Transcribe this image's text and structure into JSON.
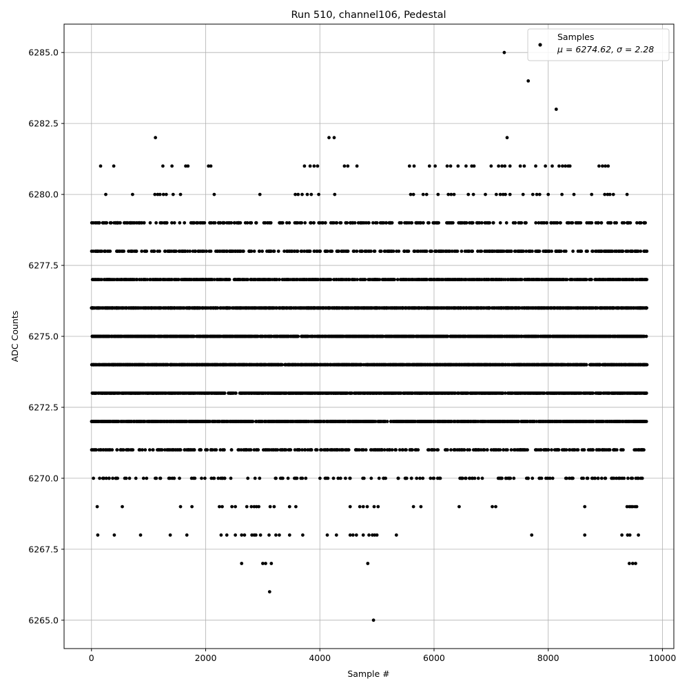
{
  "chart_data": {
    "type": "scatter",
    "title": "Run 510, channel106, Pedestal",
    "xlabel": "Sample #",
    "ylabel": "ADC Counts",
    "xlim": [
      -480,
      10200
    ],
    "ylim": [
      6264.0,
      6286.0
    ],
    "x_ticks": [
      0,
      2000,
      4000,
      6000,
      8000,
      10000
    ],
    "x_tick_labels": [
      "0",
      "2000",
      "4000",
      "6000",
      "8000",
      "10000"
    ],
    "y_ticks": [
      6265.0,
      6267.5,
      6270.0,
      6272.5,
      6275.0,
      6277.5,
      6280.0,
      6282.5,
      6285.0
    ],
    "y_tick_labels": [
      "6265.0",
      "6267.5",
      "6270.0",
      "6272.5",
      "6275.0",
      "6277.5",
      "6280.0",
      "6282.5",
      "6285.0"
    ],
    "grid": true,
    "legend_position": "top-right",
    "marker_color": "#000000",
    "n_samples": 9730,
    "series": [
      {
        "name": "Samples",
        "stats_label": "μ = 6274.62, σ = 2.28",
        "level_counts": [
          {
            "y": 6276,
            "count": 1500
          },
          {
            "y": 6275,
            "count": 1500
          },
          {
            "y": 6274,
            "count": 1500
          },
          {
            "y": 6273,
            "count": 1300
          },
          {
            "y": 6272,
            "count": 1200
          },
          {
            "y": 6277,
            "count": 900
          },
          {
            "y": 6278,
            "count": 420
          },
          {
            "y": 6271,
            "count": 420
          },
          {
            "y": 6279,
            "count": 330
          },
          {
            "y": 6270,
            "count": 170
          }
        ],
        "outliers": [
          {
            "x": 7230,
            "y": 6285
          },
          {
            "x": 7650,
            "y": 6284
          },
          {
            "x": 8140,
            "y": 6283
          },
          {
            "x": 1120,
            "y": 6282
          },
          {
            "x": 4160,
            "y": 6282
          },
          {
            "x": 4250,
            "y": 6282
          },
          {
            "x": 7280,
            "y": 6282
          },
          {
            "x": 160,
            "y": 6281
          },
          {
            "x": 390,
            "y": 6281
          },
          {
            "x": 1250,
            "y": 6281
          },
          {
            "x": 1410,
            "y": 6281
          },
          {
            "x": 1650,
            "y": 6281
          },
          {
            "x": 1690,
            "y": 6281
          },
          {
            "x": 2050,
            "y": 6281
          },
          {
            "x": 2090,
            "y": 6281
          },
          {
            "x": 3730,
            "y": 6281
          },
          {
            "x": 3830,
            "y": 6281
          },
          {
            "x": 3900,
            "y": 6281
          },
          {
            "x": 3960,
            "y": 6281
          },
          {
            "x": 4430,
            "y": 6281
          },
          {
            "x": 4490,
            "y": 6281
          },
          {
            "x": 4650,
            "y": 6281
          },
          {
            "x": 5570,
            "y": 6281
          },
          {
            "x": 5650,
            "y": 6281
          },
          {
            "x": 5920,
            "y": 6281
          },
          {
            "x": 6020,
            "y": 6281
          },
          {
            "x": 6230,
            "y": 6281
          },
          {
            "x": 6290,
            "y": 6281
          },
          {
            "x": 6420,
            "y": 6281
          },
          {
            "x": 6560,
            "y": 6281
          },
          {
            "x": 6660,
            "y": 6281
          },
          {
            "x": 6700,
            "y": 6281
          },
          {
            "x": 7000,
            "y": 6281
          },
          {
            "x": 7130,
            "y": 6281
          },
          {
            "x": 7190,
            "y": 6281
          },
          {
            "x": 7240,
            "y": 6281
          },
          {
            "x": 7330,
            "y": 6281
          },
          {
            "x": 7510,
            "y": 6281
          },
          {
            "x": 7580,
            "y": 6281
          },
          {
            "x": 7780,
            "y": 6281
          },
          {
            "x": 7950,
            "y": 6281
          },
          {
            "x": 8070,
            "y": 6281
          },
          {
            "x": 8190,
            "y": 6281
          },
          {
            "x": 8250,
            "y": 6281
          },
          {
            "x": 8300,
            "y": 6281
          },
          {
            "x": 8350,
            "y": 6281
          },
          {
            "x": 8380,
            "y": 6281
          },
          {
            "x": 8890,
            "y": 6281
          },
          {
            "x": 8950,
            "y": 6281
          },
          {
            "x": 9000,
            "y": 6281
          },
          {
            "x": 9050,
            "y": 6281
          },
          {
            "x": 250,
            "y": 6280
          },
          {
            "x": 720,
            "y": 6280
          },
          {
            "x": 1110,
            "y": 6280
          },
          {
            "x": 1160,
            "y": 6280
          },
          {
            "x": 1200,
            "y": 6280
          },
          {
            "x": 1260,
            "y": 6280
          },
          {
            "x": 1310,
            "y": 6280
          },
          {
            "x": 1430,
            "y": 6280
          },
          {
            "x": 1560,
            "y": 6280
          },
          {
            "x": 2150,
            "y": 6280
          },
          {
            "x": 2950,
            "y": 6280
          },
          {
            "x": 3570,
            "y": 6280
          },
          {
            "x": 3620,
            "y": 6280
          },
          {
            "x": 3690,
            "y": 6280
          },
          {
            "x": 3780,
            "y": 6280
          },
          {
            "x": 3850,
            "y": 6280
          },
          {
            "x": 3980,
            "y": 6280
          },
          {
            "x": 4260,
            "y": 6280
          },
          {
            "x": 5590,
            "y": 6280
          },
          {
            "x": 5640,
            "y": 6280
          },
          {
            "x": 5810,
            "y": 6280
          },
          {
            "x": 5870,
            "y": 6280
          },
          {
            "x": 6070,
            "y": 6280
          },
          {
            "x": 6250,
            "y": 6280
          },
          {
            "x": 6300,
            "y": 6280
          },
          {
            "x": 6350,
            "y": 6280
          },
          {
            "x": 6600,
            "y": 6280
          },
          {
            "x": 6690,
            "y": 6280
          },
          {
            "x": 6900,
            "y": 6280
          },
          {
            "x": 7090,
            "y": 6280
          },
          {
            "x": 7160,
            "y": 6280
          },
          {
            "x": 7210,
            "y": 6280
          },
          {
            "x": 7250,
            "y": 6280
          },
          {
            "x": 7330,
            "y": 6280
          },
          {
            "x": 7560,
            "y": 6280
          },
          {
            "x": 7730,
            "y": 6280
          },
          {
            "x": 7800,
            "y": 6280
          },
          {
            "x": 7850,
            "y": 6280
          },
          {
            "x": 8000,
            "y": 6280
          },
          {
            "x": 8240,
            "y": 6280
          },
          {
            "x": 8450,
            "y": 6280
          },
          {
            "x": 8760,
            "y": 6280
          },
          {
            "x": 8990,
            "y": 6280
          },
          {
            "x": 9040,
            "y": 6280
          },
          {
            "x": 9080,
            "y": 6280
          },
          {
            "x": 9140,
            "y": 6280
          },
          {
            "x": 9380,
            "y": 6280
          },
          {
            "x": 100,
            "y": 6269
          },
          {
            "x": 540,
            "y": 6269
          },
          {
            "x": 1560,
            "y": 6269
          },
          {
            "x": 1760,
            "y": 6269
          },
          {
            "x": 2240,
            "y": 6269
          },
          {
            "x": 2290,
            "y": 6269
          },
          {
            "x": 2460,
            "y": 6269
          },
          {
            "x": 2520,
            "y": 6269
          },
          {
            "x": 2720,
            "y": 6269
          },
          {
            "x": 2800,
            "y": 6269
          },
          {
            "x": 2850,
            "y": 6269
          },
          {
            "x": 2890,
            "y": 6269
          },
          {
            "x": 2930,
            "y": 6269
          },
          {
            "x": 3130,
            "y": 6269
          },
          {
            "x": 3200,
            "y": 6269
          },
          {
            "x": 3470,
            "y": 6269
          },
          {
            "x": 3580,
            "y": 6269
          },
          {
            "x": 4530,
            "y": 6269
          },
          {
            "x": 4700,
            "y": 6269
          },
          {
            "x": 4760,
            "y": 6269
          },
          {
            "x": 4830,
            "y": 6269
          },
          {
            "x": 4950,
            "y": 6269
          },
          {
            "x": 5020,
            "y": 6269
          },
          {
            "x": 5640,
            "y": 6269
          },
          {
            "x": 5770,
            "y": 6269
          },
          {
            "x": 6440,
            "y": 6269
          },
          {
            "x": 7020,
            "y": 6269
          },
          {
            "x": 7080,
            "y": 6269
          },
          {
            "x": 8640,
            "y": 6269
          },
          {
            "x": 9380,
            "y": 6269
          },
          {
            "x": 9420,
            "y": 6269
          },
          {
            "x": 9450,
            "y": 6269
          },
          {
            "x": 9480,
            "y": 6269
          },
          {
            "x": 9520,
            "y": 6269
          },
          {
            "x": 9550,
            "y": 6269
          },
          {
            "x": 110,
            "y": 6268
          },
          {
            "x": 400,
            "y": 6268
          },
          {
            "x": 860,
            "y": 6268
          },
          {
            "x": 1380,
            "y": 6268
          },
          {
            "x": 1670,
            "y": 6268
          },
          {
            "x": 2270,
            "y": 6268
          },
          {
            "x": 2370,
            "y": 6268
          },
          {
            "x": 2520,
            "y": 6268
          },
          {
            "x": 2630,
            "y": 6268
          },
          {
            "x": 2680,
            "y": 6268
          },
          {
            "x": 2810,
            "y": 6268
          },
          {
            "x": 2850,
            "y": 6268
          },
          {
            "x": 2880,
            "y": 6268
          },
          {
            "x": 2960,
            "y": 6268
          },
          {
            "x": 3110,
            "y": 6268
          },
          {
            "x": 3230,
            "y": 6268
          },
          {
            "x": 3290,
            "y": 6268
          },
          {
            "x": 3470,
            "y": 6268
          },
          {
            "x": 3700,
            "y": 6268
          },
          {
            "x": 4130,
            "y": 6268
          },
          {
            "x": 4290,
            "y": 6268
          },
          {
            "x": 4530,
            "y": 6268
          },
          {
            "x": 4580,
            "y": 6268
          },
          {
            "x": 4640,
            "y": 6268
          },
          {
            "x": 4760,
            "y": 6268
          },
          {
            "x": 4860,
            "y": 6268
          },
          {
            "x": 4920,
            "y": 6268
          },
          {
            "x": 4960,
            "y": 6268
          },
          {
            "x": 5000,
            "y": 6268
          },
          {
            "x": 5340,
            "y": 6268
          },
          {
            "x": 7710,
            "y": 6268
          },
          {
            "x": 8640,
            "y": 6268
          },
          {
            "x": 9290,
            "y": 6268
          },
          {
            "x": 9390,
            "y": 6268
          },
          {
            "x": 9430,
            "y": 6268
          },
          {
            "x": 9580,
            "y": 6268
          },
          {
            "x": 2630,
            "y": 6267
          },
          {
            "x": 3000,
            "y": 6267
          },
          {
            "x": 3050,
            "y": 6267
          },
          {
            "x": 3150,
            "y": 6267
          },
          {
            "x": 4840,
            "y": 6267
          },
          {
            "x": 9420,
            "y": 6267
          },
          {
            "x": 9480,
            "y": 6267
          },
          {
            "x": 9530,
            "y": 6267
          },
          {
            "x": 3120,
            "y": 6266
          },
          {
            "x": 4940,
            "y": 6265
          }
        ]
      }
    ]
  }
}
